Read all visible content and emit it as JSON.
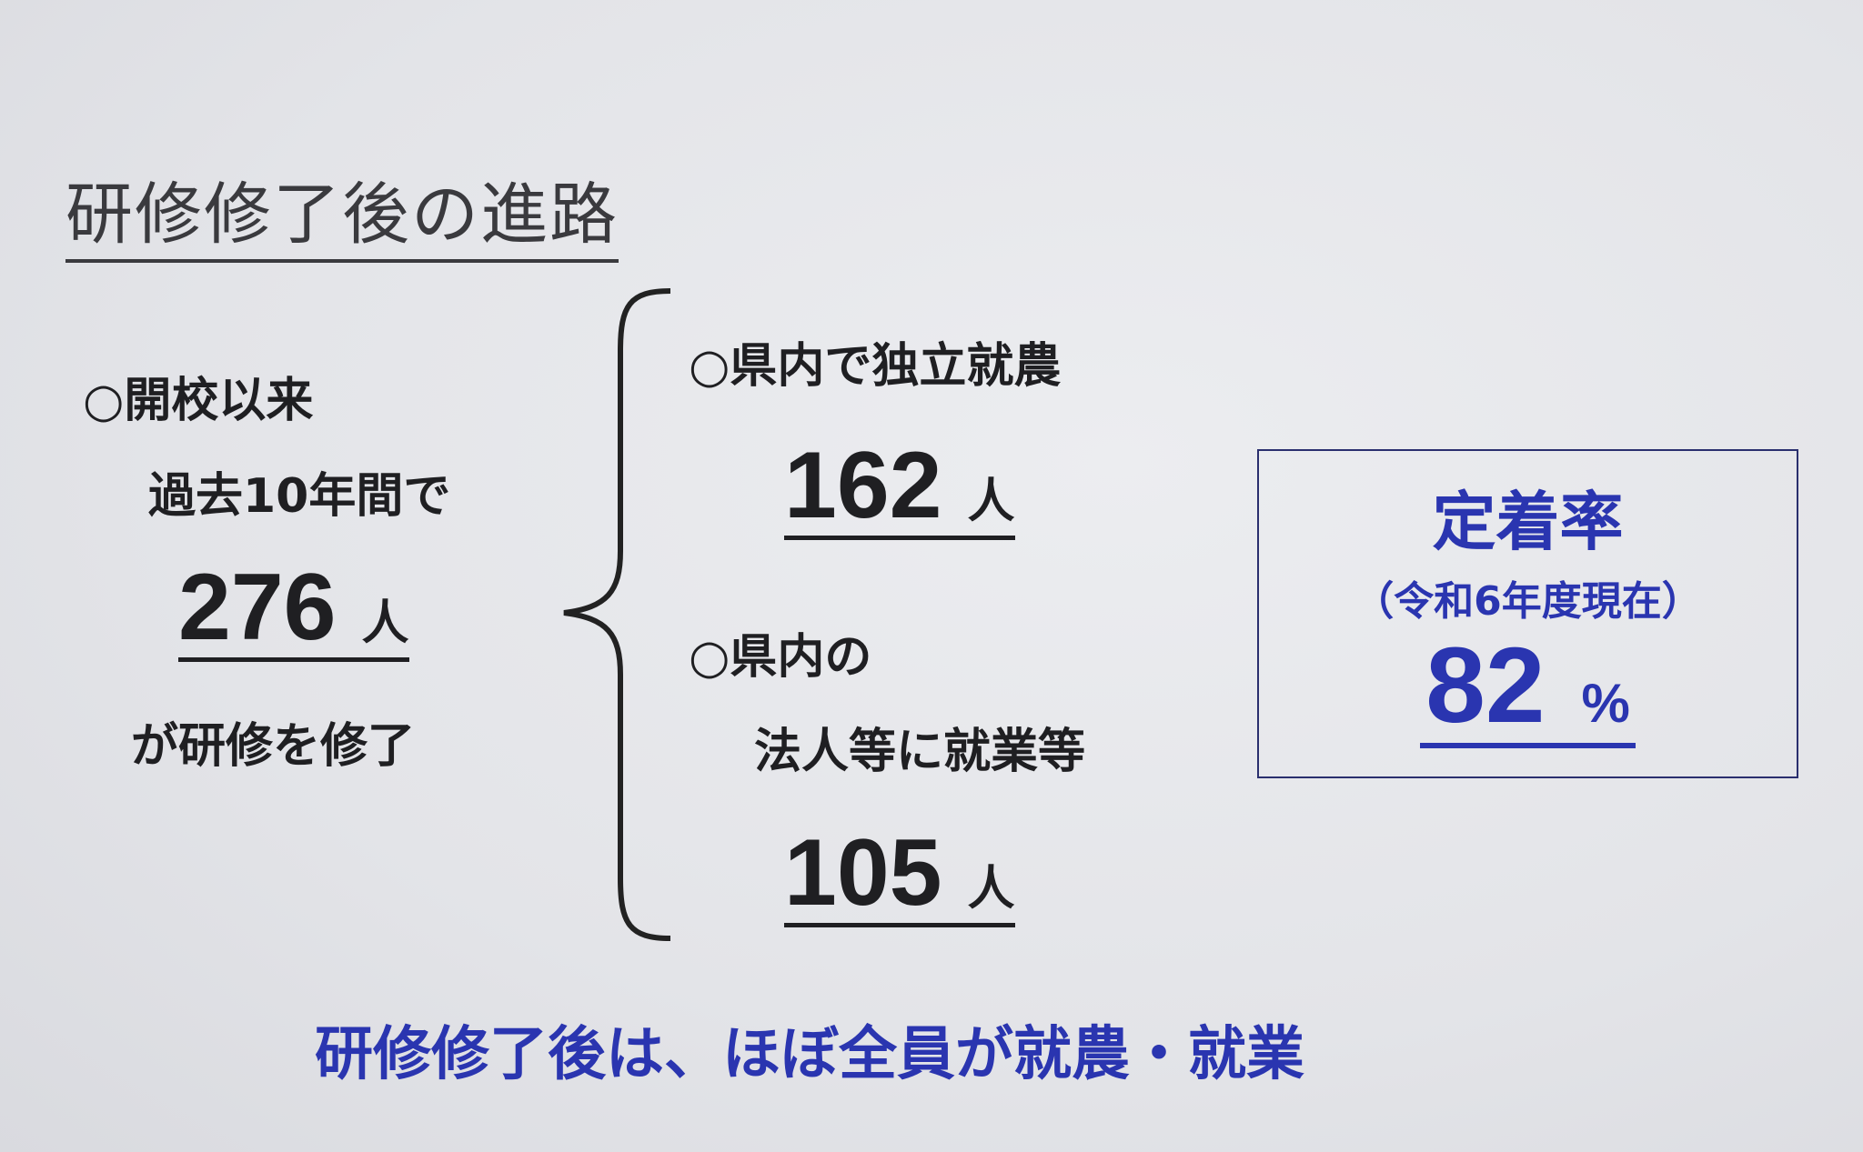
{
  "title": "研修修了後の進路",
  "left": {
    "line1": "○開校以来",
    "line2": "過去10年間で",
    "total": "276",
    "unit": "人",
    "line3": "が研修を修了"
  },
  "right": {
    "group1": {
      "label": "○県内で独立就農",
      "value": "162",
      "unit": "人"
    },
    "group2": {
      "label1": "○県内の",
      "label2": "法人等に就業等",
      "value": "105",
      "unit": "人"
    }
  },
  "retention": {
    "title": "定着率",
    "subtitle": "（令和6年度現在）",
    "value": "82",
    "unit": "%",
    "color": "#2a35b0"
  },
  "summary": "研修修了後は、ほぼ全員が就農・就業"
}
